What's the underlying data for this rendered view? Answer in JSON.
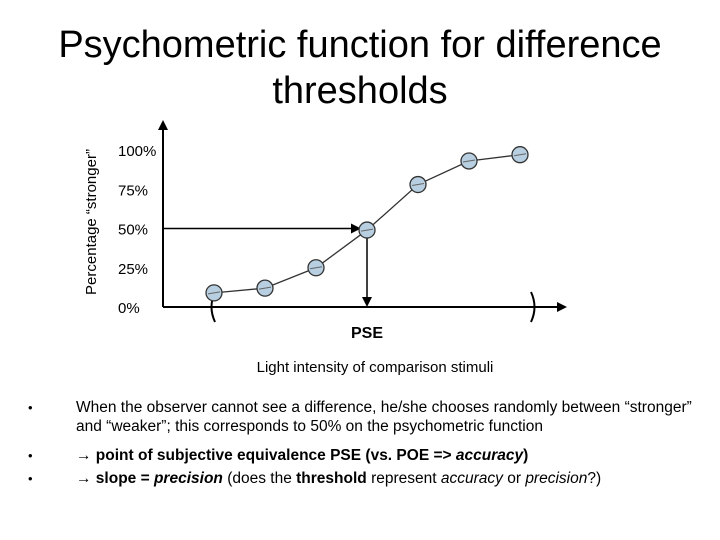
{
  "title_line1": "Psychometric function for difference",
  "title_line2": "thresholds",
  "chart_data": {
    "type": "scatter",
    "ylabel": "Percentage “stronger”",
    "xlabel": "Light intensity of comparison stimuli",
    "yticks": [
      "100%",
      "75%",
      "50%",
      "25%",
      "0%"
    ],
    "ytick_values": [
      100,
      75,
      50,
      25,
      0
    ],
    "pse_label": "PSE",
    "x": [
      1,
      2,
      3,
      4,
      5,
      6,
      7
    ],
    "y": [
      9,
      12,
      25,
      49,
      78,
      93,
      97
    ],
    "pse_x": 4,
    "colors": {
      "marker_fill": "#b7cfe0",
      "marker_stroke": "#333333",
      "axis": "#000000"
    }
  },
  "bullets": [
    {
      "marker": "•",
      "text": "When the observer cannot see a difference, he/she chooses randomly between “stronger” and “weaker”; this corresponds to 50% on the psychometric function"
    },
    {
      "marker": "•",
      "arrow": "→",
      "part1": " point of subjective equivalence PSE (vs. POE => ",
      "part2": "accuracy",
      "part3": ")"
    },
    {
      "marker": "•",
      "arrow": "→",
      "part1": " slope = ",
      "part2": "precision",
      "part3": " (does the ",
      "part4": "threshold",
      "part5": " represent ",
      "part6": "accuracy",
      "part7": " or ",
      "part8": "precision",
      "part9": "?)"
    }
  ]
}
